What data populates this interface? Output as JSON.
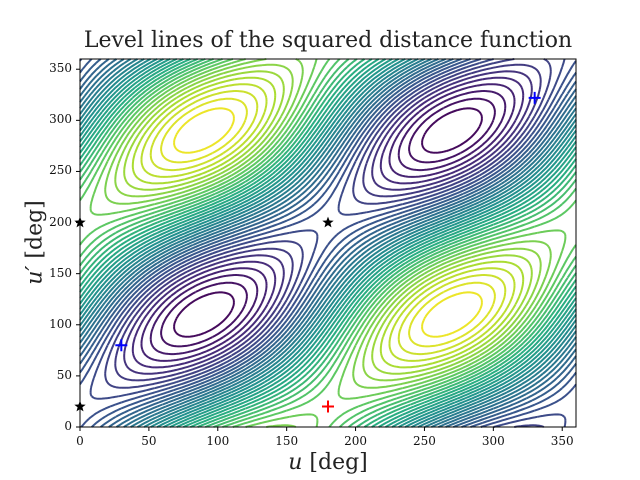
{
  "chart_data": {
    "type": "contour",
    "title": "Level lines of the squared distance function",
    "xlabel": "u [deg]",
    "ylabel": "u' [deg]",
    "xlim": [
      0,
      360
    ],
    "ylim": [
      0,
      360
    ],
    "xticks": [
      "0",
      "50",
      "100",
      "150",
      "200",
      "250",
      "300",
      "350"
    ],
    "yticks": [
      "0",
      "50",
      "100",
      "150",
      "200",
      "250",
      "300",
      "350"
    ],
    "colormap": "viridis",
    "grid": false,
    "markers": [
      {
        "type": "plus",
        "color": "#0000ff",
        "x": 330,
        "y": 322
      },
      {
        "type": "plus",
        "color": "#0000ff",
        "x": 30,
        "y": 80
      },
      {
        "type": "plus",
        "color": "#ff0000",
        "x": 180,
        "y": 20
      },
      {
        "type": "star",
        "color": "#000000",
        "x": 180,
        "y": 200
      },
      {
        "type": "star",
        "color": "#000000",
        "x": 0,
        "y": 200
      },
      {
        "type": "star",
        "color": "#000000",
        "x": 0,
        "y": 20
      }
    ]
  },
  "labels": {
    "title": "Level lines of the squared distance function",
    "xlabel": "u [deg]",
    "ylabel": "u′ [deg]"
  }
}
